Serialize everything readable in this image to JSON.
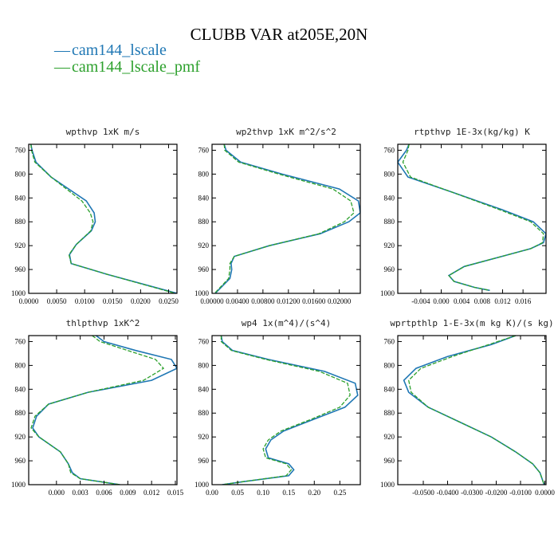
{
  "title": "CLUBB VAR at205E,20N",
  "colors": {
    "series1": "#1f77b4",
    "series2": "#2ca02c"
  },
  "legend": [
    {
      "marker": "—",
      "label": "cam144_lscale"
    },
    {
      "marker": "—",
      "label": "cam144_lscale_pmf"
    }
  ],
  "chart_data": [
    {
      "type": "line",
      "title": "wpthvp  1xK m/s",
      "xlim": [
        0,
        0.0265
      ],
      "ylim": [
        1000,
        750
      ],
      "xticks": [
        0,
        0.005,
        0.01,
        0.015,
        0.02,
        0.025
      ],
      "xtick_labels": [
        "0.0000",
        "0.0050",
        "0.0100",
        "0.0150",
        "0.0200",
        "0.0250"
      ],
      "yticks": [
        760,
        800,
        840,
        880,
        920,
        960,
        1000
      ],
      "ytick_labels": [
        "760",
        "800",
        "840",
        "880",
        "920",
        "960",
        "1000"
      ],
      "series": [
        {
          "name": "cam144_lscale",
          "x": [
            0.0004,
            0.0006,
            0.0013,
            0.004,
            0.0103,
            0.0117,
            0.0119,
            0.0112,
            0.0085,
            0.0073,
            0.0076,
            0.014,
            0.0265
          ],
          "y": [
            750,
            760,
            780,
            805,
            845,
            865,
            880,
            895,
            918,
            935,
            950,
            968,
            1000
          ]
        },
        {
          "name": "cam144_lscale_pmf",
          "x": [
            0.0004,
            0.0005,
            0.0011,
            0.004,
            0.0095,
            0.011,
            0.0115,
            0.0111,
            0.0085,
            0.0072,
            0.0076,
            0.014,
            0.0262
          ],
          "y": [
            750,
            760,
            780,
            805,
            845,
            865,
            880,
            895,
            918,
            935,
            950,
            968,
            1000
          ]
        }
      ]
    },
    {
      "type": "line",
      "title": "wp2thvp  1xK m^2/s^2",
      "xlim": [
        0,
        0.0233
      ],
      "ylim": [
        1000,
        750
      ],
      "xticks": [
        0,
        0.004,
        0.008,
        0.012,
        0.016,
        0.02
      ],
      "xtick_labels": [
        "0.00000",
        "0.00400",
        "0.00800",
        "0.01200",
        "0.01600",
        "0.02000"
      ],
      "yticks": [
        760,
        800,
        840,
        880,
        920,
        960,
        1000
      ],
      "ytick_labels": [
        "760",
        "800",
        "840",
        "880",
        "920",
        "960",
        "1000"
      ],
      "series": [
        {
          "name": "cam144_lscale",
          "x": [
            0.0019,
            0.0022,
            0.0045,
            0.011,
            0.02,
            0.023,
            0.0233,
            0.0215,
            0.017,
            0.009,
            0.0035,
            0.003,
            0.0031,
            0.0028,
            0.0005
          ],
          "y": [
            750,
            760,
            780,
            800,
            825,
            845,
            865,
            880,
            900,
            920,
            938,
            950,
            960,
            975,
            1000
          ]
        },
        {
          "name": "cam144_lscale_pmf",
          "x": [
            0.0019,
            0.002,
            0.0042,
            0.0105,
            0.019,
            0.0218,
            0.0223,
            0.0208,
            0.0168,
            0.009,
            0.0035,
            0.0028,
            0.0028,
            0.0026,
            0.0004
          ],
          "y": [
            750,
            760,
            780,
            800,
            825,
            845,
            865,
            880,
            900,
            920,
            938,
            950,
            960,
            975,
            1000
          ]
        }
      ]
    },
    {
      "type": "line",
      "title": "rtpthvp  1E-3x(kg/kg) K",
      "xlim": [
        -0.0085,
        0.0205
      ],
      "ylim": [
        1000,
        750
      ],
      "xticks": [
        -0.004,
        0,
        0.004,
        0.008,
        0.012,
        0.016
      ],
      "xtick_labels": [
        "-0.004",
        "0.000",
        "0.004",
        "0.008",
        "0.012",
        "0.016"
      ],
      "yticks": [
        760,
        800,
        840,
        880,
        920,
        960,
        1000
      ],
      "ytick_labels": [
        "760",
        "800",
        "840",
        "880",
        "920",
        "960",
        "1000"
      ],
      "series": [
        {
          "name": "cam144_lscale",
          "x": [
            -0.0063,
            -0.0068,
            -0.0085,
            -0.0065,
            0.002,
            0.012,
            0.018,
            0.0205,
            0.02,
            0.0175,
            0.0045,
            0.0015,
            0.0025,
            0.0065,
            0.0095
          ],
          "y": [
            750,
            760,
            780,
            805,
            830,
            860,
            880,
            900,
            915,
            925,
            955,
            970,
            980,
            990,
            995
          ]
        },
        {
          "name": "cam144_lscale_pmf",
          "x": [
            -0.0063,
            -0.0065,
            -0.0075,
            -0.006,
            0.002,
            0.0115,
            0.0175,
            0.02,
            0.0198,
            0.0175,
            0.0045,
            0.0015,
            0.0025,
            0.0065,
            0.0095
          ],
          "y": [
            750,
            760,
            780,
            805,
            830,
            860,
            880,
            900,
            915,
            925,
            955,
            970,
            980,
            990,
            995
          ]
        }
      ]
    },
    {
      "type": "line",
      "title": "thlpthvp  1xK^2",
      "xlim": [
        -0.0035,
        0.0152
      ],
      "ylim": [
        1000,
        750
      ],
      "xticks": [
        0,
        0.003,
        0.006,
        0.009,
        0.012,
        0.015
      ],
      "xtick_labels": [
        "0.000",
        "0.003",
        "0.006",
        "0.009",
        "0.012",
        "0.015"
      ],
      "yticks": [
        760,
        800,
        840,
        880,
        920,
        960,
        1000
      ],
      "ytick_labels": [
        "760",
        "800",
        "840",
        "880",
        "920",
        "960",
        "1000"
      ],
      "series": [
        {
          "name": "cam144_lscale",
          "x": [
            0.005,
            0.006,
            0.01,
            0.0145,
            0.0152,
            0.012,
            0.004,
            -0.001,
            -0.0025,
            -0.003,
            -0.0022,
            0.0005,
            0.0015,
            0.002,
            0.003,
            0.008
          ],
          "y": [
            750,
            760,
            775,
            790,
            805,
            825,
            845,
            865,
            885,
            905,
            920,
            945,
            965,
            980,
            990,
            1000
          ]
        },
        {
          "name": "cam144_lscale_pmf",
          "x": [
            0.0045,
            0.0055,
            0.009,
            0.0125,
            0.0135,
            0.011,
            0.004,
            -0.001,
            -0.0027,
            -0.0032,
            -0.0022,
            0.0005,
            0.0015,
            0.0018,
            0.003,
            0.008
          ],
          "y": [
            750,
            760,
            775,
            790,
            805,
            825,
            845,
            865,
            885,
            905,
            920,
            945,
            965,
            980,
            990,
            1000
          ]
        }
      ]
    },
    {
      "type": "line",
      "title": "wp4  1x(m^4)/(s^4)",
      "xlim": [
        0,
        0.29
      ],
      "ylim": [
        1000,
        750
      ],
      "xticks": [
        0,
        0.05,
        0.1,
        0.15,
        0.2,
        0.25
      ],
      "xtick_labels": [
        "0.00",
        "0.05",
        "0.10",
        "0.15",
        "0.20",
        "0.25"
      ],
      "yticks": [
        760,
        800,
        840,
        880,
        920,
        960,
        1000
      ],
      "ytick_labels": [
        "760",
        "800",
        "840",
        "880",
        "920",
        "960",
        "1000"
      ],
      "series": [
        {
          "name": "cam144_lscale",
          "x": [
            0.018,
            0.02,
            0.04,
            0.11,
            0.22,
            0.28,
            0.285,
            0.26,
            0.2,
            0.14,
            0.115,
            0.105,
            0.11,
            0.15,
            0.16,
            0.15,
            0.06,
            0.02
          ],
          "y": [
            750,
            760,
            775,
            790,
            810,
            830,
            850,
            870,
            890,
            910,
            925,
            940,
            955,
            965,
            975,
            985,
            995,
            1000
          ]
        },
        {
          "name": "cam144_lscale_pmf",
          "x": [
            0.018,
            0.018,
            0.038,
            0.105,
            0.21,
            0.265,
            0.27,
            0.25,
            0.195,
            0.135,
            0.11,
            0.1,
            0.105,
            0.145,
            0.155,
            0.145,
            0.06,
            0.02
          ],
          "y": [
            750,
            760,
            775,
            790,
            810,
            830,
            850,
            870,
            890,
            910,
            925,
            940,
            955,
            965,
            975,
            985,
            995,
            1000
          ]
        }
      ]
    },
    {
      "type": "line",
      "title": "wprtpthlp  1-E-3x(m kg K)/(s kg)",
      "xlim": [
        -0.0605,
        0.0005
      ],
      "ylim": [
        1000,
        750
      ],
      "xticks": [
        -0.05,
        -0.04,
        -0.03,
        -0.02,
        -0.01,
        0
      ],
      "xtick_labels": [
        "-0.0500",
        "-0.0400",
        "-0.0300",
        "-0.0200",
        "-0.0100",
        "0.0000"
      ],
      "yticks": [
        760,
        800,
        840,
        880,
        920,
        960,
        1000
      ],
      "ytick_labels": [
        "760",
        "800",
        "840",
        "880",
        "920",
        "960",
        "1000"
      ],
      "series": [
        {
          "name": "cam144_lscale",
          "x": [
            -0.012,
            -0.022,
            -0.04,
            -0.053,
            -0.058,
            -0.056,
            -0.048,
            -0.035,
            -0.022,
            -0.012,
            -0.005,
            -0.002,
            -0.0003
          ],
          "y": [
            750,
            765,
            785,
            805,
            825,
            845,
            870,
            895,
            920,
            945,
            965,
            980,
            1000
          ]
        },
        {
          "name": "cam144_lscale_pmf",
          "x": [
            -0.012,
            -0.023,
            -0.038,
            -0.051,
            -0.056,
            -0.055,
            -0.048,
            -0.035,
            -0.022,
            -0.012,
            -0.005,
            -0.002,
            -0.0003
          ],
          "y": [
            750,
            765,
            785,
            805,
            825,
            845,
            870,
            895,
            920,
            945,
            965,
            980,
            1000
          ]
        }
      ]
    }
  ]
}
